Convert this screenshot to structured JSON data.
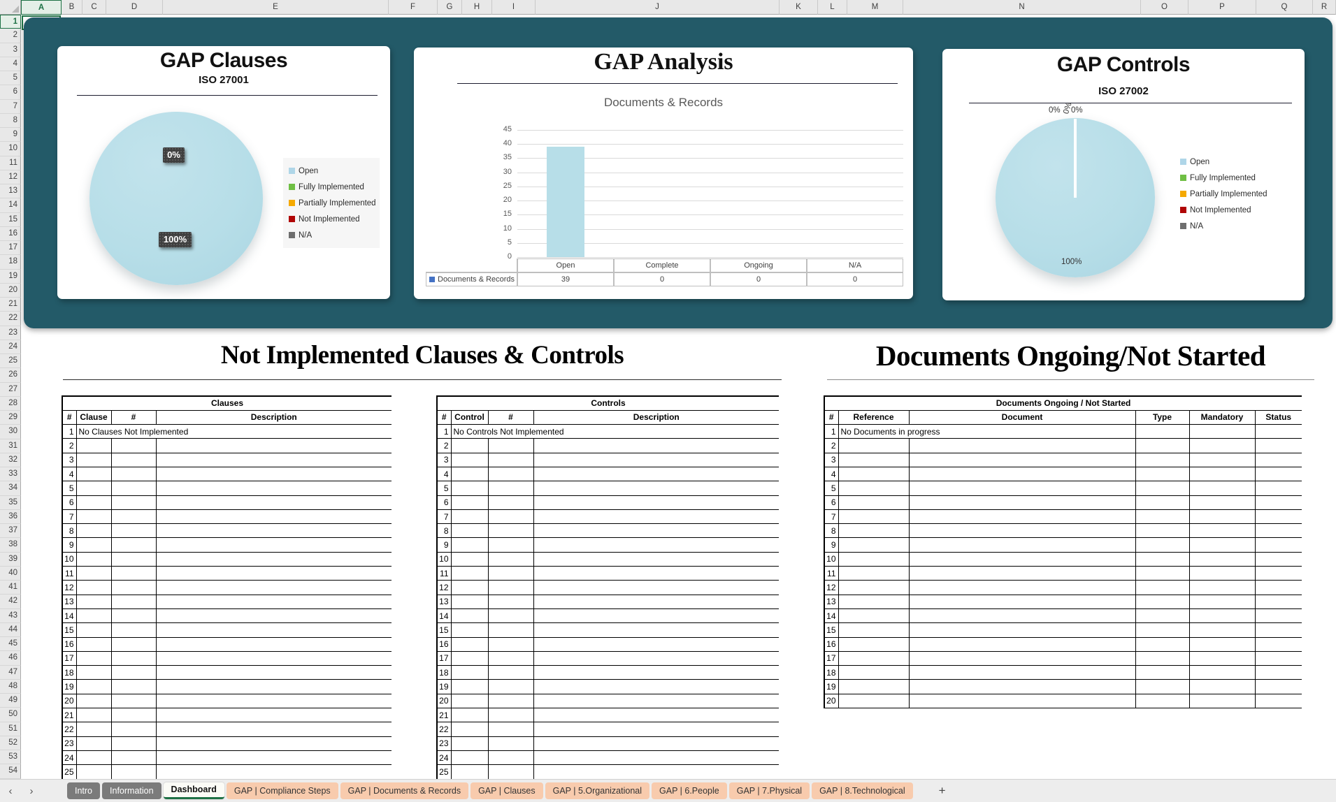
{
  "grid": {
    "column_labels": [
      "A",
      "B",
      "C",
      "D",
      "E",
      "F",
      "G",
      "H",
      "I",
      "J",
      "K",
      "L",
      "M",
      "N",
      "O",
      "P",
      "Q",
      "R"
    ],
    "selected_column": "A",
    "selected_row": 1,
    "first_row": 1,
    "row_count": 54
  },
  "legend_items": [
    {
      "label": "Open",
      "color": "#AFD6E8"
    },
    {
      "label": "Fully Implemented",
      "color": "#6FBF44"
    },
    {
      "label": "Partially Implemented",
      "color": "#F5A900"
    },
    {
      "label": "Not Implemented",
      "color": "#B00505"
    },
    {
      "label": "N/A",
      "color": "#6E6E6E"
    }
  ],
  "chart_data": [
    {
      "type": "pie",
      "title": "GAP Clauses",
      "subtitle": "ISO 27001",
      "labels": [
        "Open",
        "Fully Implemented",
        "Partially Implemented",
        "Not Implemented",
        "N/A"
      ],
      "values": [
        100,
        0,
        0,
        0,
        0
      ],
      "unit": "percent",
      "data_labels": [
        "0%",
        "100%"
      ],
      "legend_position": "right",
      "pie_color": "#B7DEE8"
    },
    {
      "type": "bar",
      "title": "GAP Analysis",
      "chart_title": "Documents & Records",
      "categories": [
        "Open",
        "Complete",
        "Ongoing",
        "N/A"
      ],
      "series": [
        {
          "name": "Documents & Records",
          "values": [
            39,
            0,
            0,
            0
          ]
        }
      ],
      "ylim": [
        0,
        45
      ],
      "y_ticks": [
        45,
        40,
        35,
        30,
        25,
        20,
        15,
        10,
        5,
        0
      ],
      "grid": true,
      "bar_color": "#B7DEE8",
      "data_table": true
    },
    {
      "type": "pie",
      "title": "GAP Controls",
      "subtitle": "ISO 27002",
      "labels": [
        "Open",
        "Fully Implemented",
        "Partially Implemented",
        "Not Implemented",
        "N/A"
      ],
      "values": [
        100,
        0,
        0,
        0,
        0
      ],
      "unit": "percent",
      "top_labels": [
        "0%",
        "0%",
        "0%"
      ],
      "bottom_label": "100%",
      "legend_position": "right",
      "pie_color": "#B7DEE8"
    }
  ],
  "sections": {
    "left_heading": "Not Implemented Clauses & Controls",
    "right_heading": "Documents Ongoing/Not Started"
  },
  "tables": {
    "clauses": {
      "title": "Clauses",
      "headers": [
        "#",
        "Clause",
        "#",
        "Description"
      ],
      "row1_text": "No Clauses Not Implemented",
      "row1_span": 3,
      "row1_trailing_cells": 0,
      "numbered_rows": 26
    },
    "controls": {
      "title": "Controls",
      "headers": [
        "#",
        "Control",
        "#",
        "Description"
      ],
      "row1_text": "No Controls Not Implemented",
      "row1_span": 3,
      "row1_trailing_cells": 0,
      "numbered_rows": 26
    },
    "documents": {
      "title": "Documents Ongoing / Not Started",
      "headers": [
        "#",
        "Reference",
        "Document",
        "Type",
        "Mandatory",
        "Status"
      ],
      "row1_text": "No Documents in progress",
      "row1_span": 2,
      "row1_trailing_cells": 3,
      "numbered_rows": 20
    }
  },
  "tab_bar": {
    "nav_left": "‹",
    "nav_right": "›",
    "add_sheet_label": "+",
    "tabs": [
      {
        "label": "Intro",
        "style": "gray"
      },
      {
        "label": "Information",
        "style": "gray"
      },
      {
        "label": "Dashboard",
        "style": "active"
      },
      {
        "label": "GAP | Compliance Steps",
        "style": "peach"
      },
      {
        "label": "GAP | Documents & Records",
        "style": "peach"
      },
      {
        "label": "GAP | Clauses",
        "style": "peach"
      },
      {
        "label": "GAP | 5.Organizational",
        "style": "peach"
      },
      {
        "label": "GAP | 6.People",
        "style": "peach"
      },
      {
        "label": "GAP | 7.Physical",
        "style": "peach"
      },
      {
        "label": "GAP | 8.Technological",
        "style": "peach"
      }
    ]
  },
  "colors": {
    "panel_teal": "#235A68",
    "pie_fill": "#B7DEE8",
    "bar_fill": "#B7DEE8",
    "series_swatch_blue": "#4472C4",
    "tab_peach": "#F8CBAD",
    "tab_gray": "#7B7B7B",
    "active_tab_green": "#1E7145",
    "label_box_dark": "#3F3F3F"
  }
}
